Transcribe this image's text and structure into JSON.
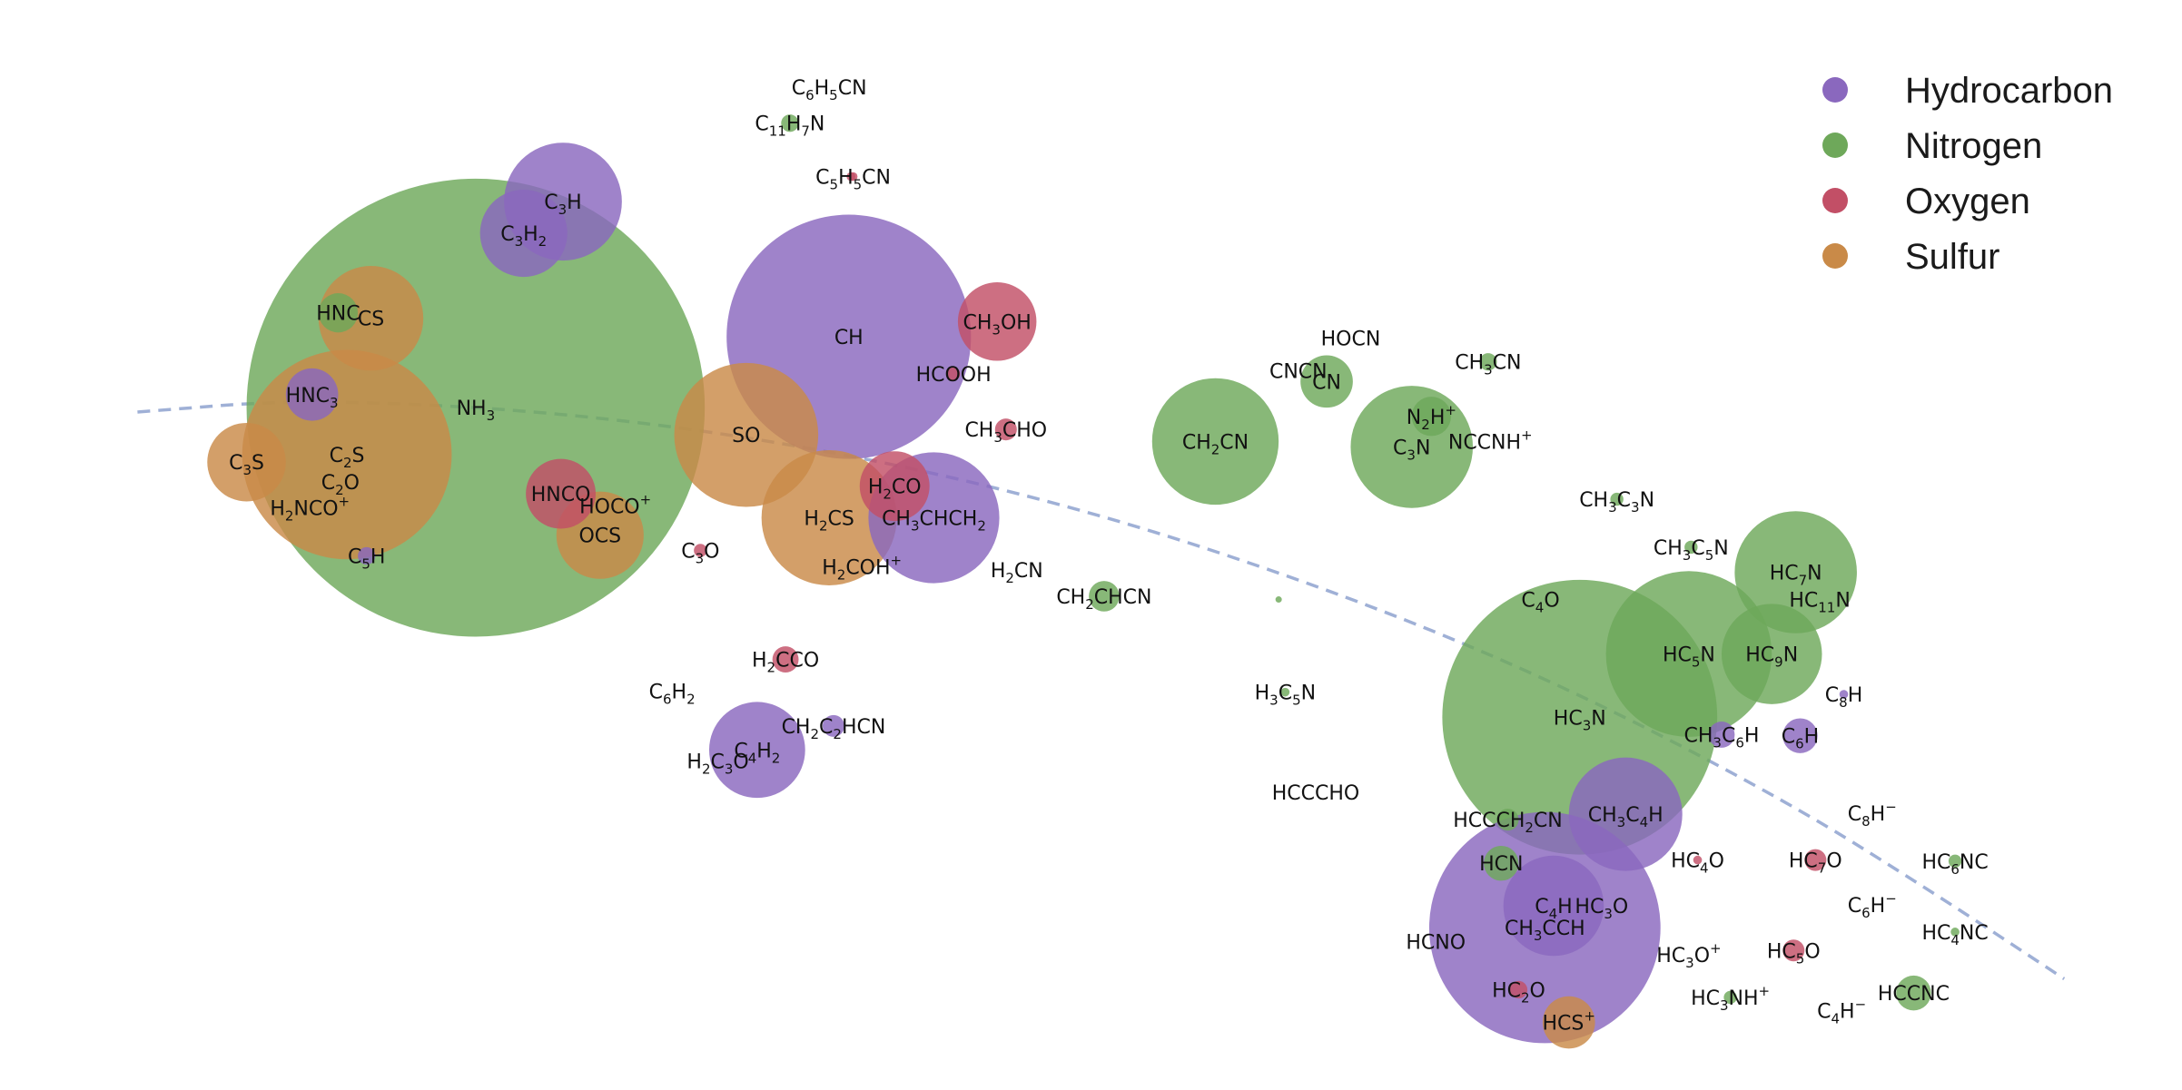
{
  "chart_data": {
    "type": "scatter",
    "title": "",
    "xlabel": "",
    "ylabel": "",
    "xlim": [
      0,
      100
    ],
    "ylim": [
      0,
      100
    ],
    "grid": false,
    "axes_visible": false,
    "legend_position": "top-right",
    "categories": [
      {
        "name": "Hydrocarbon",
        "color": "#8a68be"
      },
      {
        "name": "Nitrogen",
        "color": "#6ea85a"
      },
      {
        "name": "Oxygen",
        "color": "#c24f66"
      },
      {
        "name": "Sulfur",
        "color": "#c98a48"
      }
    ],
    "trend_curve": {
      "style": "dashed",
      "color": "#9fb0d6",
      "points": [
        [
          6.3,
          62.2
        ],
        [
          14,
          63.4
        ],
        [
          26,
          62.2
        ],
        [
          38,
          58.8
        ],
        [
          50,
          53.2
        ],
        [
          62,
          45.2
        ],
        [
          72,
          36.8
        ],
        [
          82,
          26.4
        ],
        [
          89,
          17.6
        ],
        [
          94.6,
          10.2
        ]
      ]
    },
    "points": [
      {
        "label": "NH3",
        "category": "Nitrogen",
        "x": 21.8,
        "y": 62.6,
        "size": 10.5
      },
      {
        "label": "C2S",
        "category": "Sulfur",
        "x": 15.9,
        "y": 58.3,
        "size": 4.8
      },
      {
        "label": "C2O",
        "category": "Oxygen",
        "x": 15.6,
        "y": 55.8,
        "size": 0
      },
      {
        "label": "CS",
        "category": "Sulfur",
        "x": 17.0,
        "y": 70.8,
        "size": 2.4
      },
      {
        "label": "HNC",
        "category": "Nitrogen",
        "x": 15.5,
        "y": 71.3,
        "size": 0.9
      },
      {
        "label": "HNC3",
        "category": "Hydrocarbon",
        "x": 14.3,
        "y": 63.8,
        "size": 1.2
      },
      {
        "label": "C3S",
        "category": "Sulfur",
        "x": 11.3,
        "y": 57.6,
        "size": 1.8
      },
      {
        "label": "H2NCO+",
        "category": "Nitrogen",
        "x": 14.2,
        "y": 53.4,
        "size": 0
      },
      {
        "label": "C5H",
        "category": "Hydrocarbon",
        "x": 16.8,
        "y": 49.0,
        "size": 0.4
      },
      {
        "label": "C3H",
        "category": "Hydrocarbon",
        "x": 25.8,
        "y": 81.5,
        "size": 2.7
      },
      {
        "label": "C3H2",
        "category": "Hydrocarbon",
        "x": 24.0,
        "y": 78.6,
        "size": 2.0
      },
      {
        "label": "HNCO",
        "category": "Oxygen",
        "x": 25.7,
        "y": 54.7,
        "size": 1.6
      },
      {
        "label": "HOCO+",
        "category": "Oxygen",
        "x": 28.2,
        "y": 53.6,
        "size": 0
      },
      {
        "label": "OCS",
        "category": "Sulfur",
        "x": 27.5,
        "y": 50.9,
        "size": 2.0
      },
      {
        "label": "C3O",
        "category": "Oxygen",
        "x": 32.1,
        "y": 49.5,
        "size": 0.3
      },
      {
        "label": "SO",
        "category": "Sulfur",
        "x": 34.2,
        "y": 60.1,
        "size": 3.3
      },
      {
        "label": "CH",
        "category": "Hydrocarbon",
        "x": 38.9,
        "y": 69.1,
        "size": 5.6
      },
      {
        "label": "C6H5CN",
        "category": "Nitrogen",
        "x": 38.0,
        "y": 92.0,
        "size": 0
      },
      {
        "label": "C11H7N",
        "category": "Nitrogen",
        "x": 36.2,
        "y": 88.7,
        "size": 0.4
      },
      {
        "label": "C5H5CN",
        "category": "Oxygen",
        "x": 39.1,
        "y": 83.8,
        "size": 0.2
      },
      {
        "label": "CH3OH",
        "category": "Oxygen",
        "x": 45.7,
        "y": 70.5,
        "size": 1.8
      },
      {
        "label": "HCOOH",
        "category": "Oxygen",
        "x": 43.7,
        "y": 65.7,
        "size": 0.3
      },
      {
        "label": "CH3CHO",
        "category": "Oxygen",
        "x": 46.1,
        "y": 60.6,
        "size": 0.5
      },
      {
        "label": "H2CO",
        "category": "Oxygen",
        "x": 41.0,
        "y": 55.4,
        "size": 1.6
      },
      {
        "label": "H2CS",
        "category": "Sulfur",
        "x": 38.0,
        "y": 52.5,
        "size": 3.1
      },
      {
        "label": "CH3CHCH2",
        "category": "Hydrocarbon",
        "x": 42.8,
        "y": 52.5,
        "size": 3.0
      },
      {
        "label": "H2COH+",
        "category": "Oxygen",
        "x": 39.5,
        "y": 48.0,
        "size": 0
      },
      {
        "label": "H2CN",
        "category": "Nitrogen",
        "x": 46.6,
        "y": 47.7,
        "size": 0
      },
      {
        "label": "CH2CHCN",
        "category": "Nitrogen",
        "x": 50.6,
        "y": 45.3,
        "size": 0.7
      },
      {
        "label": "H2CCO",
        "category": "Oxygen",
        "x": 36.0,
        "y": 39.5,
        "size": 0.6
      },
      {
        "label": "C6H2",
        "category": "Hydrocarbon",
        "x": 30.8,
        "y": 36.6,
        "size": 0
      },
      {
        "label": "CH2C2HCN",
        "category": "Hydrocarbon",
        "x": 38.2,
        "y": 33.4,
        "size": 0.5
      },
      {
        "label": "C4H2",
        "category": "Hydrocarbon",
        "x": 34.7,
        "y": 31.2,
        "size": 2.2
      },
      {
        "label": "H2C3O",
        "category": "Hydrocarbon",
        "x": 32.9,
        "y": 30.2,
        "size": 0
      },
      {
        "label": "CH2CN",
        "category": "Nitrogen",
        "x": 55.7,
        "y": 59.5,
        "size": 2.9
      },
      {
        "label": "HOCN",
        "category": "Nitrogen",
        "x": 61.9,
        "y": 69.0,
        "size": 0
      },
      {
        "label": "CNCN",
        "category": "Nitrogen",
        "x": 59.5,
        "y": 66.0,
        "size": 0
      },
      {
        "label": "CN",
        "category": "Nitrogen",
        "x": 60.8,
        "y": 65.0,
        "size": 1.2
      },
      {
        "label": "CH3CN",
        "category": "Nitrogen",
        "x": 68.2,
        "y": 66.8,
        "size": 0.4
      },
      {
        "label": "N2H+",
        "category": "Nitrogen",
        "x": 65.6,
        "y": 61.8,
        "size": 0.9
      },
      {
        "label": "C3N",
        "category": "Nitrogen",
        "x": 64.7,
        "y": 59.0,
        "size": 2.8
      },
      {
        "label": "NCCNH+",
        "category": "Nitrogen",
        "x": 68.3,
        "y": 59.5,
        "size": 0
      },
      {
        "label": "CH3C3N",
        "category": "Nitrogen",
        "x": 74.1,
        "y": 54.2,
        "size": 0.3
      },
      {
        "label": "CH3C5N",
        "category": "Nitrogen",
        "x": 77.5,
        "y": 49.8,
        "size": 0.3
      },
      {
        "label": "C4O",
        "category": "Oxygen",
        "x": 70.6,
        "y": 45.0,
        "size": 0
      },
      {
        "label": "HC7N",
        "category": "Nitrogen",
        "x": 82.3,
        "y": 47.5,
        "size": 2.8
      },
      {
        "label": "HC11N",
        "category": "Nitrogen",
        "x": 83.4,
        "y": 45.0,
        "size": 0
      },
      {
        "label": "HC5N",
        "category": "Nitrogen",
        "x": 77.4,
        "y": 40.0,
        "size": 3.8
      },
      {
        "label": "HC9N",
        "category": "Nitrogen",
        "x": 81.2,
        "y": 40.0,
        "size": 2.3
      },
      {
        "label": "HC3N",
        "category": "Nitrogen",
        "x": 72.4,
        "y": 34.2,
        "size": 6.3
      },
      {
        "label": "CH3C6H",
        "category": "Hydrocarbon",
        "x": 78.9,
        "y": 32.6,
        "size": 0.6
      },
      {
        "label": "C6H",
        "category": "Hydrocarbon",
        "x": 82.5,
        "y": 32.5,
        "size": 0.8
      },
      {
        "label": "C8H",
        "category": "Hydrocarbon",
        "x": 84.5,
        "y": 36.3,
        "size": 0.2
      },
      {
        "label": "H3C5N",
        "category": "Nitrogen",
        "x": 58.9,
        "y": 36.5,
        "size": 0.2
      },
      {
        "label": "HCCCHO",
        "category": "Oxygen",
        "x": 60.3,
        "y": 27.3,
        "size": 0
      },
      {
        "label": "HCCCH2CN",
        "category": "Nitrogen",
        "x": 69.1,
        "y": 24.8,
        "size": 0.5
      },
      {
        "label": "CH3C4H",
        "category": "Hydrocarbon",
        "x": 74.5,
        "y": 25.3,
        "size": 2.6
      },
      {
        "label": "HCN",
        "category": "Nitrogen",
        "x": 68.8,
        "y": 20.8,
        "size": 0.8
      },
      {
        "label": "C4H",
        "category": "Hydrocarbon",
        "x": 71.2,
        "y": 16.9,
        "size": 2.3
      },
      {
        "label": "CH3CCH",
        "category": "Hydrocarbon",
        "x": 70.8,
        "y": 14.9,
        "size": 5.3
      },
      {
        "label": "HC3O",
        "category": "Oxygen",
        "x": 73.4,
        "y": 16.9,
        "size": 0
      },
      {
        "label": "HC4O",
        "category": "Oxygen",
        "x": 77.8,
        "y": 21.1,
        "size": 0.2
      },
      {
        "label": "HC7O",
        "category": "Oxygen",
        "x": 83.2,
        "y": 21.1,
        "size": 0.5
      },
      {
        "label": "C8H-",
        "category": "Hydrocarbon",
        "x": 85.8,
        "y": 25.4,
        "size": 0
      },
      {
        "label": "HC6NC",
        "category": "Nitrogen",
        "x": 89.6,
        "y": 21.0,
        "size": 0.3
      },
      {
        "label": "C6H-",
        "category": "Hydrocarbon",
        "x": 85.8,
        "y": 17.0,
        "size": 0
      },
      {
        "label": "HC4NC",
        "category": "Nitrogen",
        "x": 89.6,
        "y": 14.5,
        "size": 0.2
      },
      {
        "label": "HCNO",
        "category": "Nitrogen",
        "x": 65.8,
        "y": 13.6,
        "size": 0
      },
      {
        "label": "HC3O+",
        "category": "Oxygen",
        "x": 77.4,
        "y": 12.4,
        "size": 0
      },
      {
        "label": "HC5O",
        "category": "Oxygen",
        "x": 82.2,
        "y": 12.8,
        "size": 0.5
      },
      {
        "label": "HC2O",
        "category": "Oxygen",
        "x": 69.6,
        "y": 9.2,
        "size": 0.4
      },
      {
        "label": "HCS+",
        "category": "Sulfur",
        "x": 71.9,
        "y": 6.2,
        "size": 1.2
      },
      {
        "label": "HC3NH+",
        "category": "Nitrogen",
        "x": 79.3,
        "y": 8.5,
        "size": 0.3
      },
      {
        "label": "C4H-",
        "category": "Hydrocarbon",
        "x": 84.4,
        "y": 7.3,
        "size": 0
      },
      {
        "label": "HCCNC",
        "category": "Nitrogen",
        "x": 87.7,
        "y": 8.9,
        "size": 0.8
      },
      {
        "label": "",
        "category": "Oxygen",
        "x": 39.0,
        "y": 83.8,
        "size": 0.2
      },
      {
        "label": "",
        "category": "Nitrogen",
        "x": 58.6,
        "y": 45.0,
        "size": 0.1
      }
    ]
  }
}
